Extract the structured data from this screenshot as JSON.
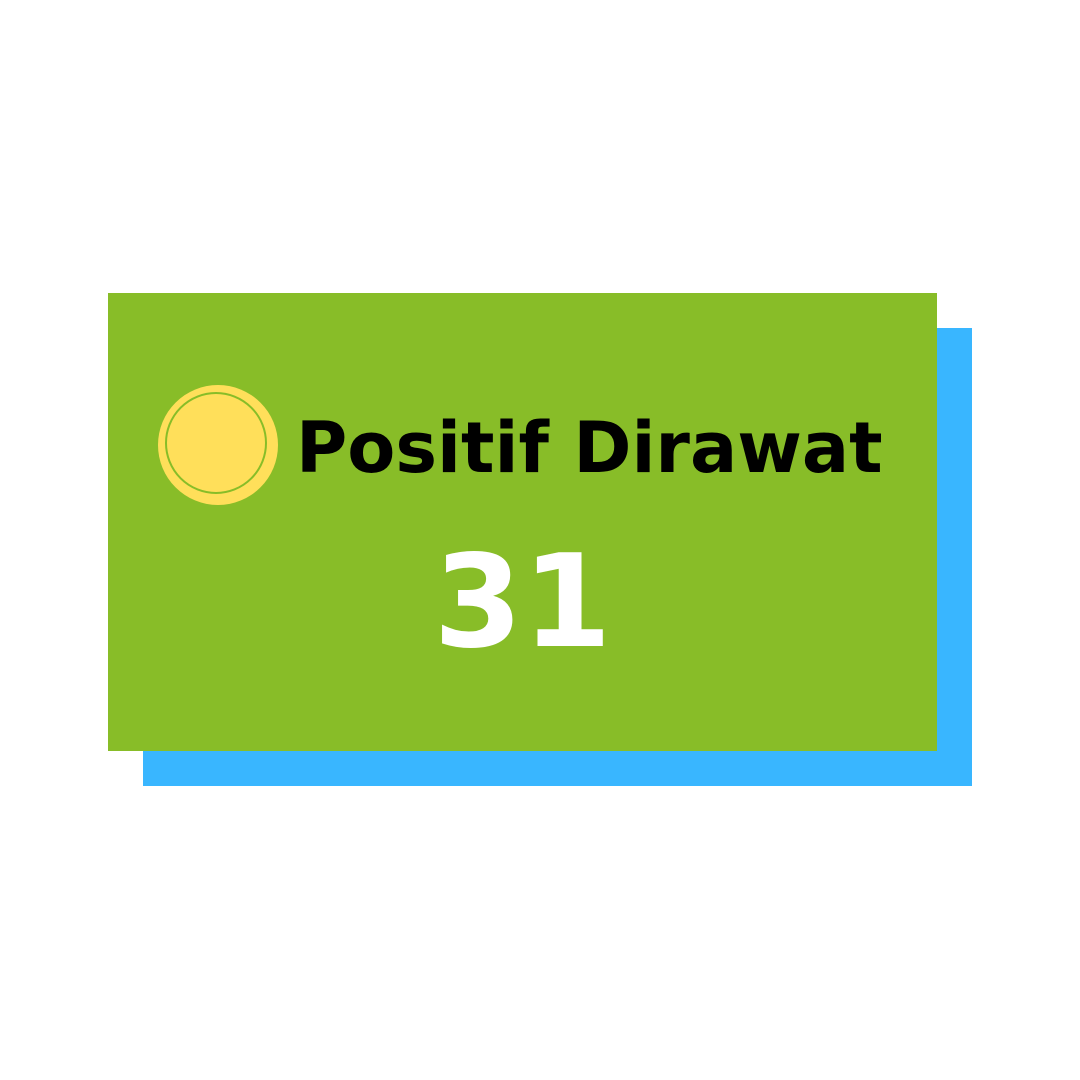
{
  "card": {
    "label": "Positif Dirawat",
    "value": "31"
  },
  "colors": {
    "card_background": "#88bd28",
    "shadow_background": "#39b6ff",
    "icon_fill": "#ffdf5a",
    "label_text": "#000000",
    "value_text": "#ffffff"
  },
  "icons": {
    "status_indicator": "yellow-circle-icon"
  }
}
